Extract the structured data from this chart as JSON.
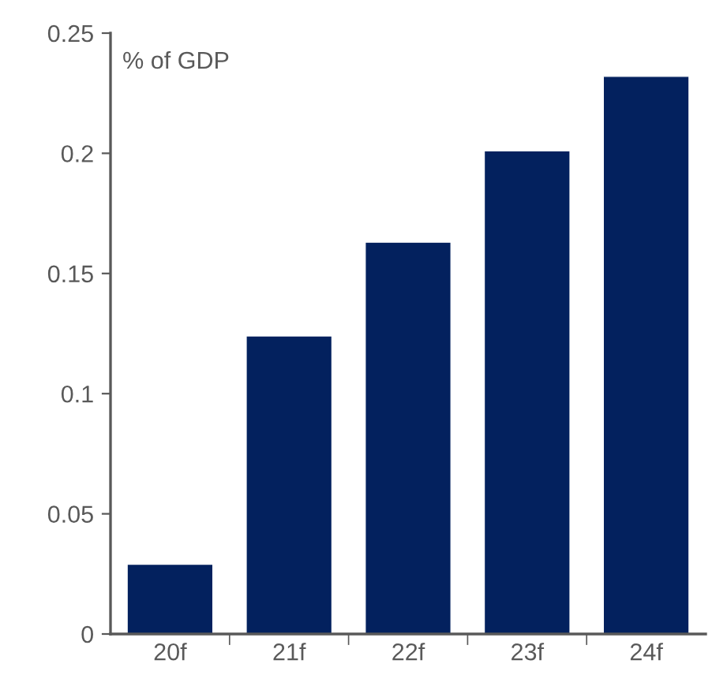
{
  "chart_data": {
    "type": "bar",
    "categories": [
      "20f",
      "21f",
      "22f",
      "23f",
      "24f"
    ],
    "values": [
      0.029,
      0.124,
      0.163,
      0.201,
      0.232
    ],
    "color": "#03215e",
    "ylim": [
      0,
      0.25
    ],
    "yticks": [
      0,
      0.05,
      0.1,
      0.15,
      0.2,
      0.25
    ],
    "annotations": [
      "% of GDP"
    ],
    "grid": false
  }
}
